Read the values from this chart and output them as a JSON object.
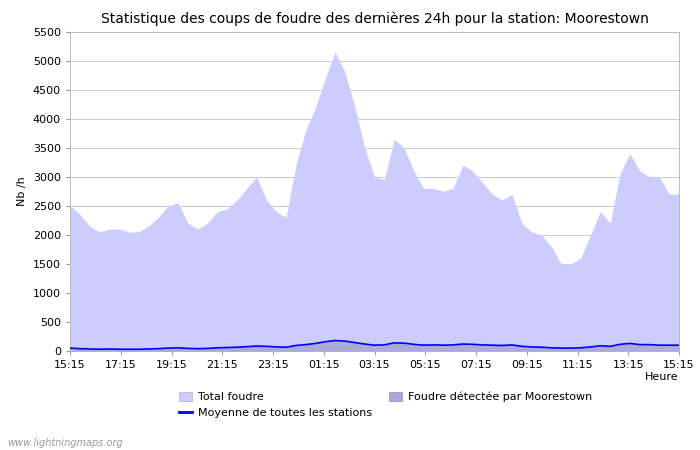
{
  "title": "Statistique des coups de foudre des dernières 24h pour la station: Moorestown",
  "xlabel": "Heure",
  "ylabel": "Nb /h",
  "ylim": [
    0,
    5500
  ],
  "yticks": [
    0,
    500,
    1000,
    1500,
    2000,
    2500,
    3000,
    3500,
    4000,
    4500,
    5000,
    5500
  ],
  "xtick_labels": [
    "15:15",
    "17:15",
    "19:15",
    "21:15",
    "23:15",
    "01:15",
    "03:15",
    "05:15",
    "07:15",
    "09:15",
    "11:15",
    "13:15",
    "15:15"
  ],
  "watermark": "www.lightningmaps.org",
  "bg_color": "#ffffff",
  "plot_bg_color": "#ffffff",
  "grid_color": "#cccccc",
  "total_foudre_color": "#ccccff",
  "moorestown_color": "#aaaadd",
  "moyenne_color": "#0000ee",
  "total_foudre_y": [
    2500,
    2350,
    2150,
    2050,
    2100,
    2100,
    2050,
    2050,
    2150,
    2300,
    2500,
    2550,
    2200,
    2100,
    2200,
    2400,
    2450,
    2600,
    2800,
    3000,
    2600,
    2400,
    2300,
    3200,
    3800,
    4200,
    4700,
    5150,
    4800,
    4200,
    3500,
    3000,
    2950,
    3650,
    3500,
    3100,
    2800,
    2800,
    2750,
    2800,
    3200,
    3100,
    2900,
    2700,
    2600,
    2700,
    2200,
    2050,
    2000,
    1800,
    1500,
    1500,
    1600,
    2000,
    2400,
    2200,
    3050,
    3400,
    3100,
    3000,
    3000,
    2700,
    2700
  ],
  "moorestown_y": [
    50,
    40,
    35,
    30,
    35,
    30,
    30,
    30,
    35,
    40,
    50,
    55,
    45,
    40,
    45,
    55,
    60,
    65,
    75,
    85,
    80,
    70,
    65,
    95,
    110,
    130,
    160,
    180,
    170,
    145,
    120,
    100,
    105,
    140,
    135,
    115,
    100,
    105,
    100,
    105,
    120,
    115,
    105,
    100,
    95,
    105,
    80,
    70,
    65,
    55,
    50,
    50,
    55,
    70,
    90,
    80,
    115,
    130,
    110,
    110,
    100,
    100,
    100
  ],
  "moyenne_y": [
    50,
    40,
    35,
    30,
    35,
    30,
    30,
    30,
    35,
    40,
    50,
    55,
    45,
    40,
    45,
    55,
    60,
    65,
    75,
    85,
    80,
    70,
    65,
    95,
    110,
    130,
    160,
    180,
    170,
    145,
    120,
    100,
    105,
    140,
    135,
    115,
    100,
    105,
    100,
    105,
    120,
    115,
    105,
    100,
    95,
    105,
    80,
    70,
    65,
    55,
    50,
    50,
    55,
    70,
    90,
    80,
    115,
    130,
    110,
    110,
    100,
    100,
    100
  ],
  "legend_total_label": "Total foudre",
  "legend_moorestown_label": "Foudre détectée par Moorestown",
  "legend_moyenne_label": "Moyenne de toutes les stations",
  "title_fontsize": 10,
  "tick_fontsize": 8,
  "label_fontsize": 8,
  "watermark_fontsize": 7
}
